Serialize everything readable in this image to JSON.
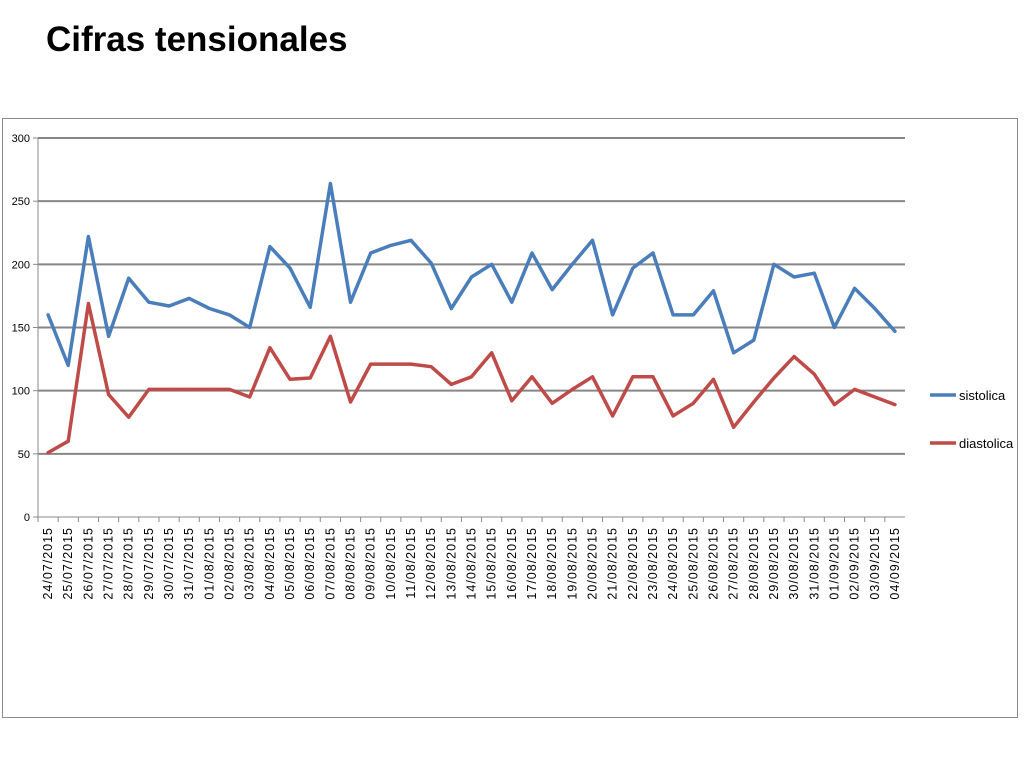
{
  "page": {
    "title": "Cifras tensionales"
  },
  "chart_data": {
    "type": "line",
    "title": "",
    "xlabel": "",
    "ylabel": "",
    "ylim": [
      0,
      300
    ],
    "yticks": [
      0,
      50,
      100,
      150,
      200,
      250,
      300
    ],
    "grid": true,
    "legend_position": "right",
    "categories": [
      "24/07/2015",
      "25/07/2015",
      "26/07/2015",
      "27/07/2015",
      "28/07/2015",
      "29/07/2015",
      "30/07/2015",
      "31/07/2015",
      "01/08/2015",
      "02/08/2015",
      "03/08/2015",
      "04/08/2015",
      "05/08/2015",
      "06/08/2015",
      "07/08/2015",
      "08/08/2015",
      "09/08/2015",
      "10/08/2015",
      "11/08/2015",
      "12/08/2015",
      "13/08/2015",
      "14/08/2015",
      "15/08/2015",
      "16/08/2015",
      "17/08/2015",
      "18/08/2015",
      "19/08/2015",
      "20/08/2015",
      "21/08/2015",
      "22/08/2015",
      "23/08/2015",
      "24/08/2015",
      "25/08/2015",
      "26/08/2015",
      "27/08/2015",
      "28/08/2015",
      "29/08/2015",
      "30/08/2015",
      "31/08/2015",
      "01/09/2015",
      "02/09/2015",
      "03/09/2015",
      "04/09/2015"
    ],
    "series": [
      {
        "name": "sistolica",
        "color": "#4a7ebb",
        "values": [
          160,
          120,
          222,
          143,
          189,
          170,
          167,
          173,
          165,
          160,
          150,
          214,
          197,
          166,
          264,
          170,
          209,
          215,
          219,
          201,
          165,
          190,
          200,
          170,
          209,
          180,
          200,
          219,
          160,
          197,
          209,
          160,
          160,
          179,
          130,
          140,
          200,
          190,
          193,
          150,
          181,
          165,
          147
        ]
      },
      {
        "name": "diastolica",
        "color": "#be4b48",
        "values": [
          51,
          60,
          169,
          97,
          79,
          101,
          101,
          101,
          101,
          101,
          95,
          134,
          109,
          110,
          143,
          91,
          121,
          121,
          121,
          119,
          105,
          111,
          130,
          92,
          111,
          90,
          101,
          111,
          80,
          111,
          111,
          80,
          90,
          109,
          71,
          91,
          110,
          127,
          113,
          89,
          101,
          95,
          89
        ]
      }
    ]
  }
}
